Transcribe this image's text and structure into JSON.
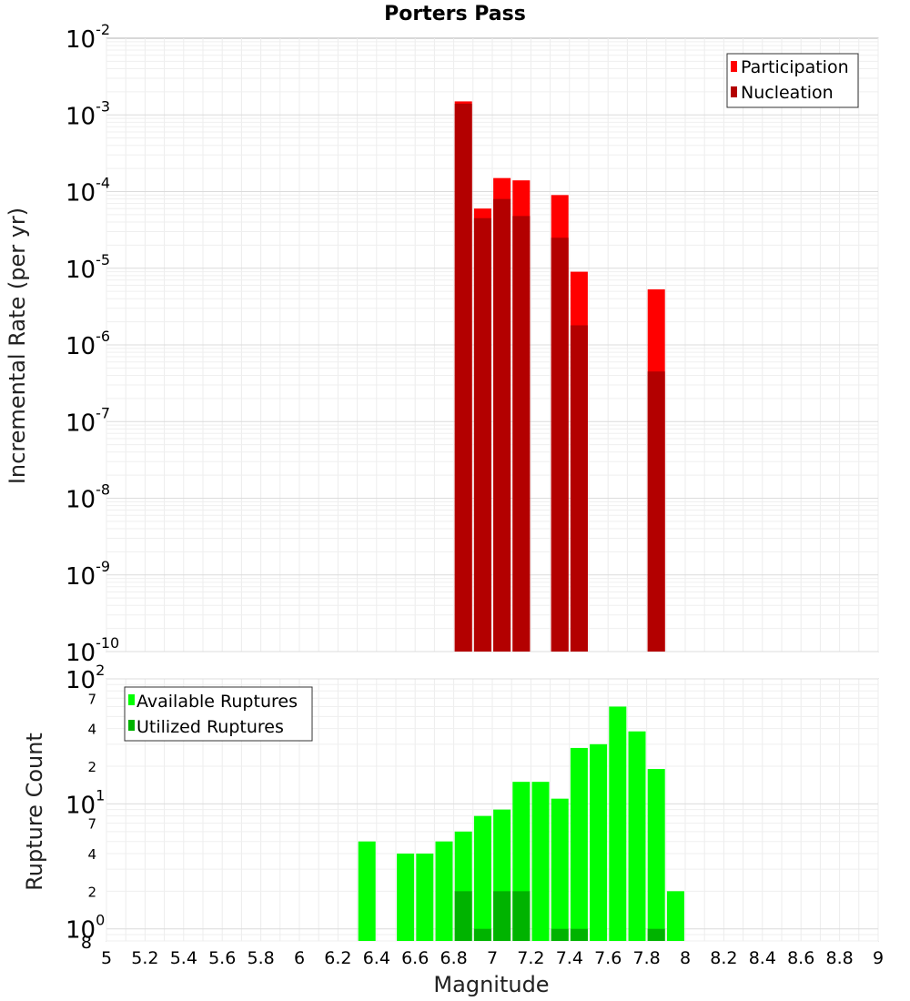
{
  "chart_data": [
    {
      "type": "bar",
      "title": "Porters Pass",
      "xlabel": "",
      "ylabel": "Incremental Rate (per yr)",
      "xlim": [
        5,
        9
      ],
      "ylim_exponents": [
        -10,
        -2
      ],
      "yscale": "log",
      "grid": true,
      "legend_position": "top-right",
      "y_tick_labels": [
        {
          "base": "10",
          "exp": "-2"
        },
        {
          "base": "10",
          "exp": "-3"
        },
        {
          "base": "10",
          "exp": "-4"
        },
        {
          "base": "10",
          "exp": "-5"
        },
        {
          "base": "10",
          "exp": "-6"
        },
        {
          "base": "10",
          "exp": "-7"
        },
        {
          "base": "10",
          "exp": "-8"
        },
        {
          "base": "10",
          "exp": "-9"
        },
        {
          "base": "10",
          "exp": "-10"
        }
      ],
      "series": [
        {
          "name": "Participation",
          "color": "#ff0000",
          "x": [
            6.85,
            6.95,
            7.05,
            7.15,
            7.35,
            7.45,
            7.85
          ],
          "values": [
            0.0015,
            6e-05,
            0.00015,
            0.00014,
            9e-05,
            9e-06,
            5.3e-06
          ]
        },
        {
          "name": "Nucleation",
          "color": "#b30000",
          "x": [
            6.85,
            6.95,
            7.05,
            7.15,
            7.35,
            7.45,
            7.85
          ],
          "values": [
            0.0014,
            4.5e-05,
            8e-05,
            4.8e-05,
            2.5e-05,
            1.8e-06,
            4.5e-07
          ]
        }
      ]
    },
    {
      "type": "bar",
      "title": "",
      "xlabel": "Magnitude",
      "ylabel": "Rupture Count",
      "xlim": [
        5,
        9
      ],
      "ylim": [
        0.8,
        100
      ],
      "yscale": "log",
      "grid": true,
      "legend_position": "top-left",
      "x_ticks": [
        "5",
        "5.2",
        "5.4",
        "5.6",
        "5.8",
        "6",
        "6.2",
        "6.4",
        "6.6",
        "6.8",
        "7",
        "7.2",
        "7.4",
        "7.6",
        "7.8",
        "8",
        "8.2",
        "8.4",
        "8.6",
        "8.8",
        "9"
      ],
      "y_tick_labels": [
        {
          "base": "10",
          "exp": "2"
        },
        {
          "base": "10",
          "exp": "1"
        },
        {
          "base": "10",
          "exp": "0"
        }
      ],
      "y_minor_labels": [
        "7",
        "4",
        "2",
        "7",
        "4",
        "2",
        "8"
      ],
      "series": [
        {
          "name": "Available Ruptures",
          "color": "#00ff00",
          "x": [
            6.35,
            6.55,
            6.65,
            6.75,
            6.85,
            6.95,
            7.05,
            7.15,
            7.25,
            7.35,
            7.45,
            7.55,
            7.65,
            7.75,
            7.85,
            7.95
          ],
          "values": [
            5,
            4,
            4,
            5,
            6,
            8,
            9,
            15,
            15,
            11,
            28,
            30,
            60,
            38,
            19,
            2
          ]
        },
        {
          "name": "Utilized Ruptures",
          "color": "#00b300",
          "x": [
            6.85,
            6.95,
            7.05,
            7.15,
            7.35,
            7.45,
            7.85
          ],
          "values": [
            2,
            1,
            2,
            2,
            1,
            1,
            1
          ]
        }
      ]
    }
  ]
}
